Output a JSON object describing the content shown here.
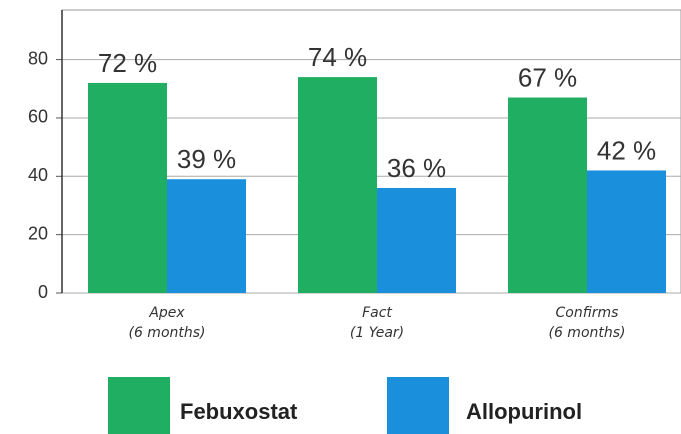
{
  "chart_data": {
    "type": "bar",
    "categories": [
      "Apex\n(6 months)",
      "Fact\n(1 Year)",
      "Confirms\n(6 months)"
    ],
    "series": [
      {
        "name": "Febuxostat",
        "color": "#1fae62",
        "values": [
          72,
          74,
          67
        ],
        "value_labels": [
          "72 %",
          "74 %",
          "67 %"
        ]
      },
      {
        "name": "Allopurinol",
        "color": "#1a8fdc",
        "values": [
          39,
          36,
          42
        ],
        "value_labels": [
          "39 %",
          "36 %",
          "42 %"
        ]
      }
    ],
    "ylim": [
      0,
      97
    ],
    "yticks": [
      0,
      20,
      40,
      60,
      80
    ],
    "grid": true,
    "legend": "bottom"
  }
}
